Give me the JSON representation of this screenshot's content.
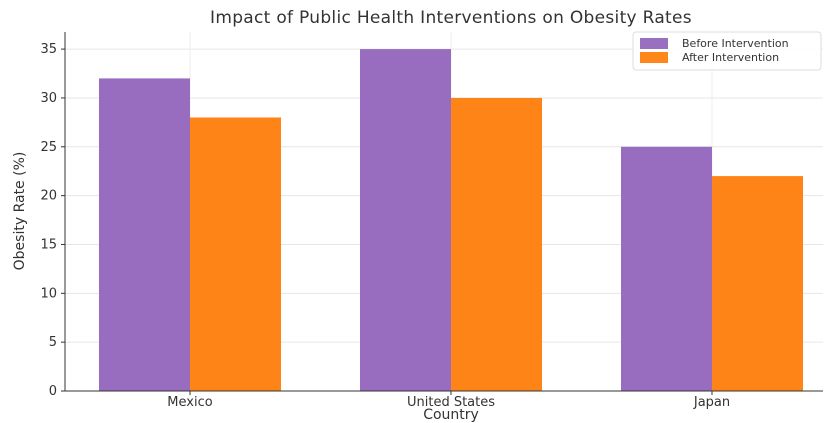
{
  "chart_data": {
    "type": "bar",
    "title": "Impact of Public Health Interventions on Obesity Rates",
    "xlabel": "Country",
    "ylabel": "Obesity Rate (%)",
    "categories": [
      "Mexico",
      "United States",
      "Japan"
    ],
    "series": [
      {
        "name": "Before Intervention",
        "values": [
          32,
          35,
          25
        ],
        "color": "#9467bd"
      },
      {
        "name": "After Intervention",
        "values": [
          28,
          30,
          22
        ],
        "color": "#ff7f0e"
      }
    ],
    "ylim": [
      0,
      36.75
    ],
    "yticks": [
      0,
      5,
      10,
      15,
      20,
      25,
      30,
      35
    ],
    "grid": true,
    "legend": "top-right"
  }
}
